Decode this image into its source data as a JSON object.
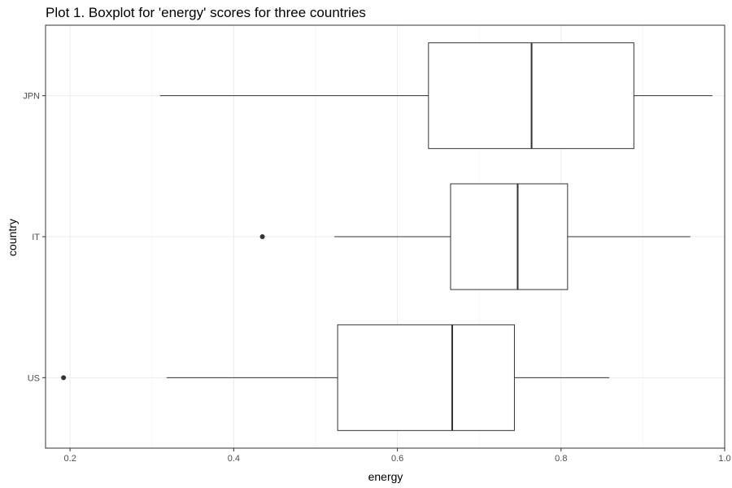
{
  "chart_data": {
    "type": "boxplot",
    "title": "Plot 1. Boxplot for 'energy' scores for three countries",
    "xlabel": "energy",
    "ylabel": "country",
    "xlim": [
      0.17,
      1.0
    ],
    "xticks": [
      "0.2",
      "0.4",
      "0.6",
      "0.8",
      "1.0"
    ],
    "grid": true,
    "categories": [
      "JPN",
      "IT",
      "US"
    ],
    "boxes": [
      {
        "label": "JPN",
        "whisker_low": 0.31,
        "q1": 0.638,
        "median": 0.764,
        "q3": 0.889,
        "whisker_high": 0.985,
        "outliers": []
      },
      {
        "label": "IT",
        "whisker_low": 0.523,
        "q1": 0.665,
        "median": 0.747,
        "q3": 0.808,
        "whisker_high": 0.958,
        "outliers": [
          0.435
        ]
      },
      {
        "label": "US",
        "whisker_low": 0.318,
        "q1": 0.527,
        "median": 0.667,
        "q3": 0.743,
        "whisker_high": 0.859,
        "outliers": [
          0.192
        ]
      }
    ]
  }
}
